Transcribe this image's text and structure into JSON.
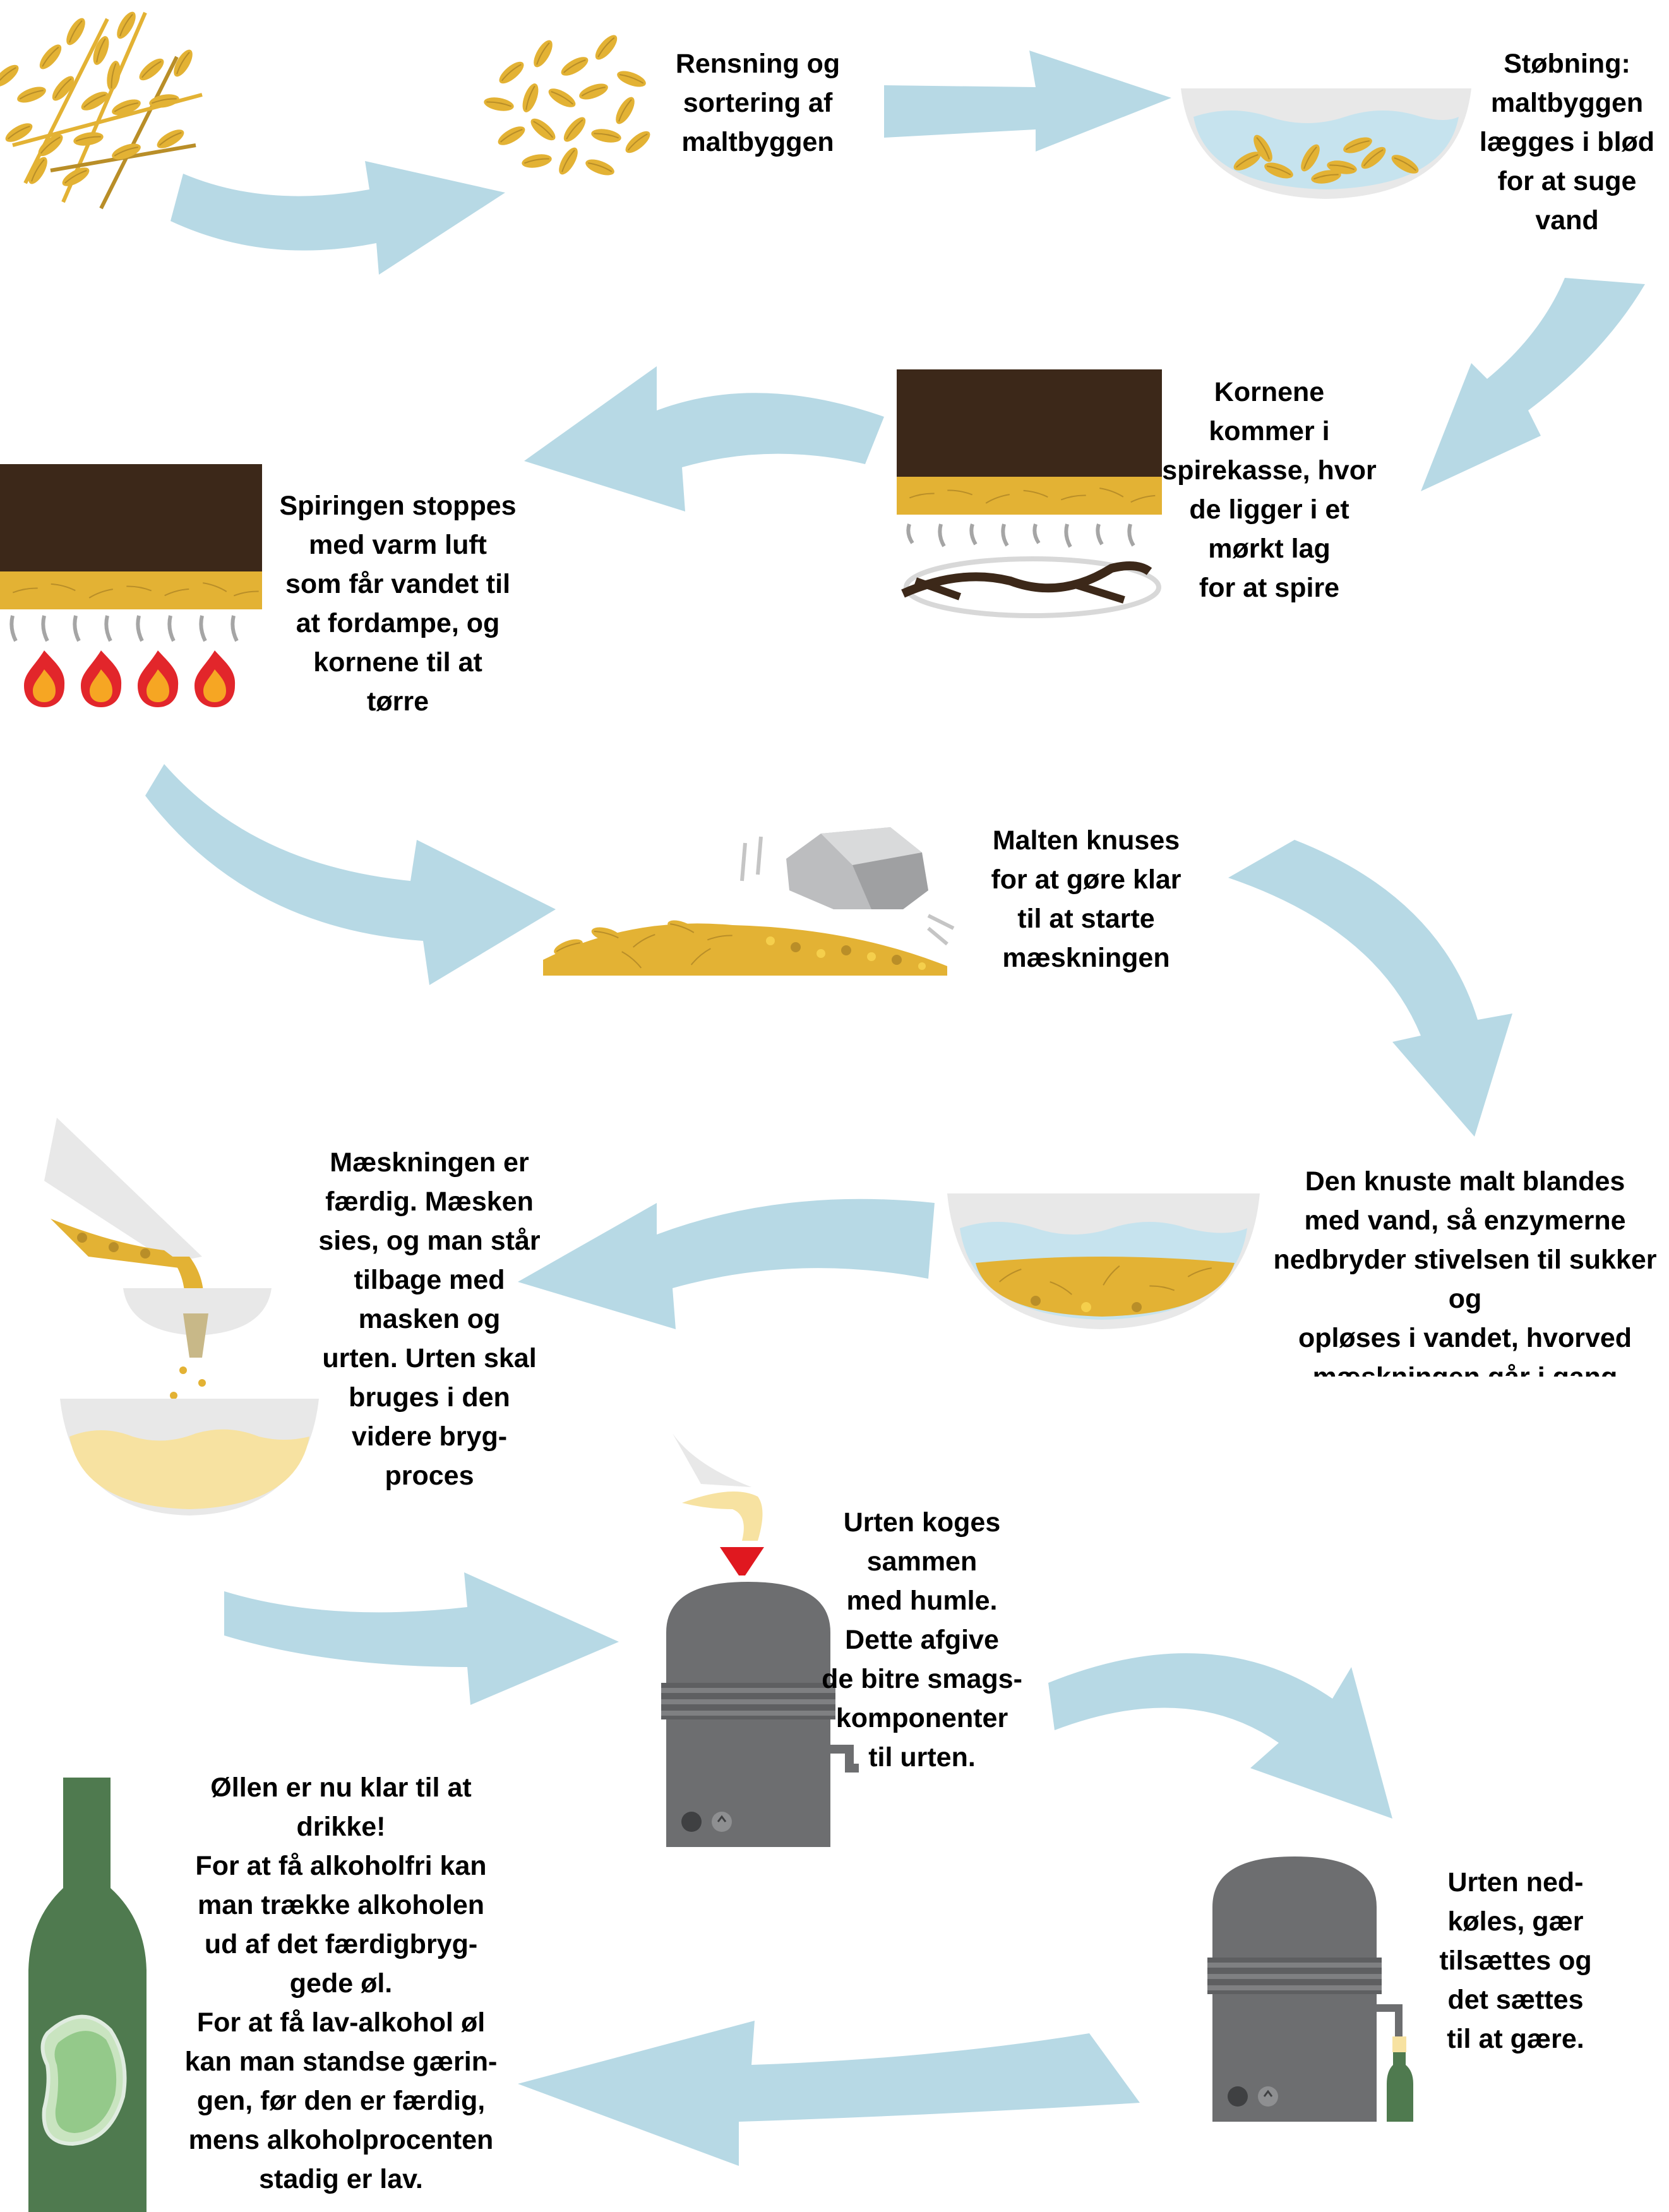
{
  "colors": {
    "arrow": "#b7d9e5",
    "grain": "#e3b234",
    "grain_dark": "#b98e28",
    "grain_light": "#f5cf4c",
    "soil": "#3c2819",
    "water": "#c6e3ee",
    "bowl": "#e8e8e8",
    "flame_red": "#e2262b",
    "flame_orange": "#f6a623",
    "kettle": "#6d6e70",
    "wort": "#f7e2a1",
    "bottle": "#4f7a4f",
    "liquid": "#94c98a",
    "funnel": "#e0181f"
  },
  "steps": [
    {
      "id": "rensning",
      "text": "Rensning og\nsortering af\nmaltbyggen"
    },
    {
      "id": "stobning",
      "text": "Støbning:\nmaltbyggen\nlægges i blød\nfor at suge\nvand"
    },
    {
      "id": "spiring",
      "text": "Kornene\nkommer i\nspirekasse, hvor\nde ligger i et\nmørkt lag\nfor at spire"
    },
    {
      "id": "torring",
      "text": "Spiringen stoppes\nmed varm luft\nsom får vandet til\nat fordampe, og\nkornene til at\ntørre"
    },
    {
      "id": "knusning",
      "text": "Malten knuses\nfor at gøre klar\ntil at starte\nmæskningen"
    },
    {
      "id": "maeskning",
      "text": "Den knuste malt blandes\nmed vand, så enzymerne\nnedbryder stivelsen til sukker og\nopløses i vandet, hvorved\nmæskningen går i gang"
    },
    {
      "id": "filtrering",
      "text": "Mæskningen er\nfærdig. Mæsken\nsies, og man står\ntilbage med\nmasken og\nurten. Urten skal\nbruges i den\nvidere bryg-\nproces"
    },
    {
      "id": "kogning",
      "text": "Urten koges\nsammen\nmed humle.\nDette afgive\nde bitre smags-\nkomponenter\ntil urten."
    },
    {
      "id": "gaering",
      "text": "Urten ned-\nkøles, gær\ntilsættes og\ndet sættes\ntil at gære."
    },
    {
      "id": "faerdig",
      "text": "Øllen er nu klar til at\ndrikke!\nFor at få alkoholfri kan\nman trække alkoholen\nud af det færdigbryg-\ngede øl.\nFor at få lav-alkohol øl\nkan man standse gærin-\ngen, før den er færdig,\nmens alkoholprocenten\nstadig er lav."
    }
  ]
}
